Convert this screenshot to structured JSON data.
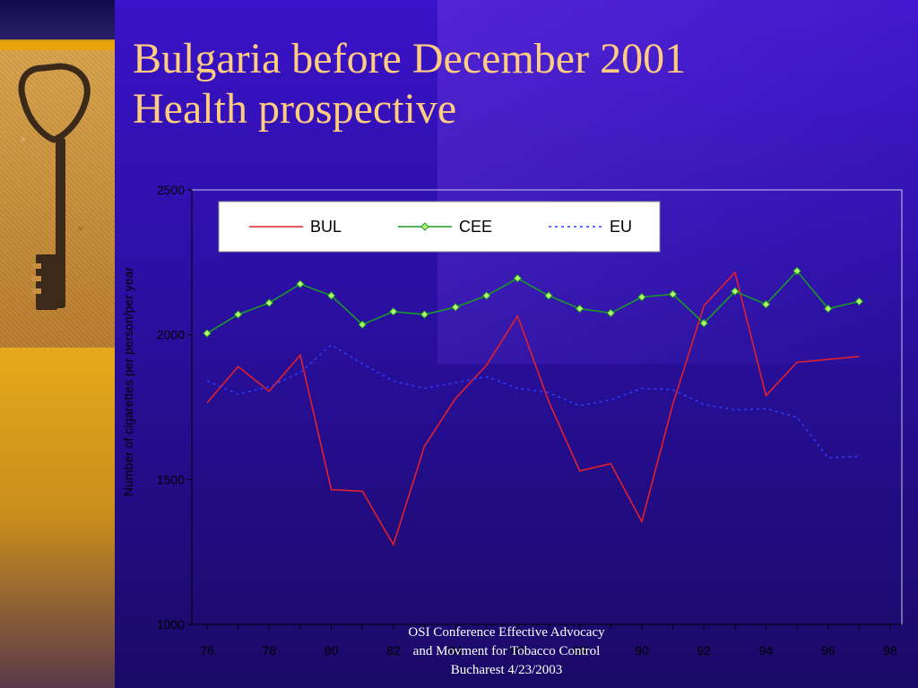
{
  "slide": {
    "title_line1": "Bulgaria before December 2001",
    "title_line2": "Health prospective",
    "footer_line1": "OSI Conference Effective Advocacy",
    "footer_line2": "and Movment for Tobacco Control",
    "footer_line3": "Bucharest 4/23/2003"
  },
  "colors": {
    "title": "#ffcc80",
    "bul": "#e0202a",
    "cee": "#1a9a2a",
    "eu": "#2a3cff",
    "cee_marker_fill": "#b8ff6a"
  },
  "chart_data": {
    "type": "line",
    "ylabel": "Number of cigarettes per person/per year",
    "ylim": [
      1000,
      2500
    ],
    "yticks": [
      1000,
      1500,
      2000,
      2500
    ],
    "xlim": [
      76,
      98
    ],
    "xticks": [
      "76",
      "78",
      "80",
      "82",
      "84",
      "86",
      "88",
      "90",
      "92",
      "94",
      "96",
      "98"
    ],
    "legend_position": "top-left",
    "series": [
      {
        "name": "BUL",
        "style": "solid",
        "x": [
          76,
          77,
          78,
          79,
          80,
          81,
          82,
          83,
          84,
          85,
          86,
          87,
          88,
          89,
          90,
          91,
          92,
          93,
          94,
          95,
          96,
          97
        ],
        "y": [
          1765,
          1890,
          1805,
          1930,
          1465,
          1460,
          1275,
          1615,
          1780,
          1895,
          2065,
          1770,
          1530,
          1555,
          1355,
          1760,
          2100,
          2215,
          1790,
          1905,
          1915,
          1925
        ]
      },
      {
        "name": "CEE",
        "style": "solid-marker",
        "x": [
          76,
          77,
          78,
          79,
          80,
          81,
          82,
          83,
          84,
          85,
          86,
          87,
          88,
          89,
          90,
          91,
          92,
          93,
          94,
          95,
          96,
          97
        ],
        "y": [
          2005,
          2070,
          2110,
          2175,
          2135,
          2035,
          2080,
          2070,
          2095,
          2135,
          2195,
          2135,
          2090,
          2075,
          2130,
          2140,
          2040,
          2150,
          2105,
          2220,
          2090,
          2115
        ]
      },
      {
        "name": "EU",
        "style": "dotted",
        "x": [
          76,
          77,
          78,
          79,
          80,
          81,
          82,
          83,
          84,
          85,
          86,
          87,
          88,
          89,
          90,
          91,
          92,
          93,
          94,
          95,
          96,
          97
        ],
        "y": [
          1840,
          1795,
          1820,
          1870,
          1965,
          1900,
          1840,
          1815,
          1835,
          1855,
          1815,
          1800,
          1755,
          1775,
          1815,
          1810,
          1760,
          1740,
          1745,
          1715,
          1575,
          1580
        ]
      }
    ]
  }
}
